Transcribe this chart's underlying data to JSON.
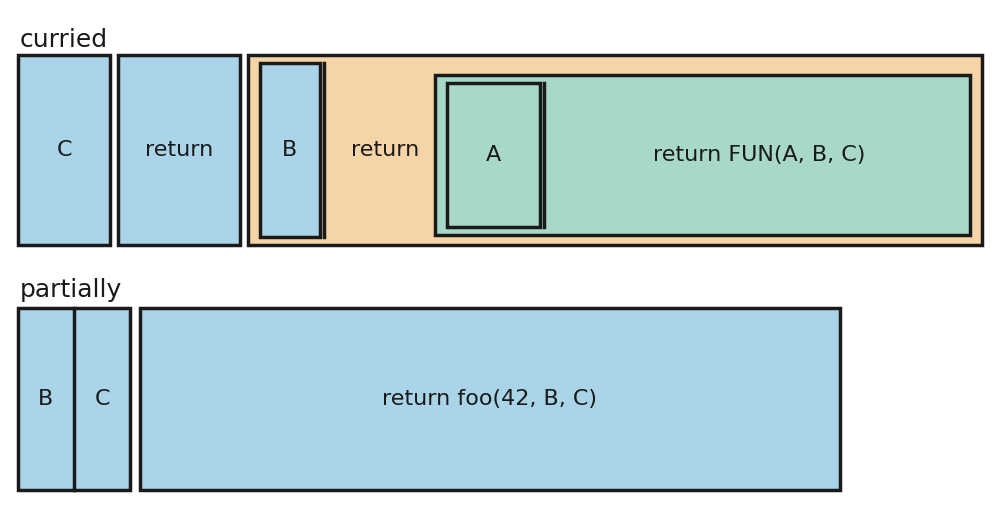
{
  "bg_color": "#ffffff",
  "blue_color": "#aad4e8",
  "orange_color": "#f5d5a8",
  "green_color": "#a8d8c8",
  "border_color": "#1a1a1a",
  "text_color": "#1a1a1a",
  "curried_title": "curried",
  "partially_title": "partially",
  "label_C": "C",
  "label_return1": "return",
  "label_B_curried": "B",
  "label_return2": "return",
  "label_A": "A",
  "label_FUN": "return FUN(A, B, C)",
  "label_BC_B": "B",
  "label_BC_C": "C",
  "label_foo": "return foo(42, B, C)",
  "font_size_title": 18,
  "font_size_label": 16,
  "lw": 2.5,
  "fig_w": 10.0,
  "fig_h": 5.21,
  "dpi": 100
}
